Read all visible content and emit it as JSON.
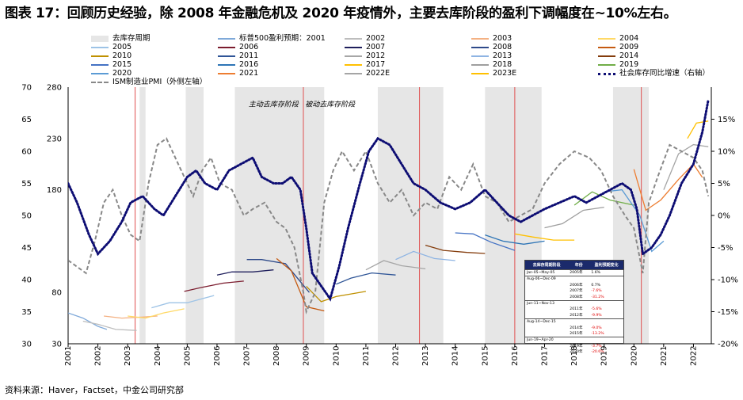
{
  "title": "图表 17：回顾历史经验，除 2008 年金融危机及 2020 年疫情外，主要去库阶段的盈利下调幅度在~10%左右。",
  "source": "资料来源：Haver，Factset，中金公司研究部",
  "legend": [
    {
      "label": "去库存周期",
      "color": "#e6e6e6",
      "style": "box"
    },
    {
      "label": "标普500盈利预期：2001",
      "color": "#7fa9d9",
      "style": "line"
    },
    {
      "label": "2002",
      "color": "#bdbdbd",
      "style": "line"
    },
    {
      "label": "2003",
      "color": "#f4b183",
      "style": "line"
    },
    {
      "label": "2004",
      "color": "#ffd966",
      "style": "line"
    },
    {
      "label": "2005",
      "color": "#9dc3e6",
      "style": "line"
    },
    {
      "label": "2006",
      "color": "#7b1c2e",
      "style": "line"
    },
    {
      "label": "2007",
      "color": "#1f1f5c",
      "style": "line"
    },
    {
      "label": "2008",
      "color": "#2e4a8a",
      "style": "line"
    },
    {
      "label": "2009",
      "color": "#c55a11",
      "style": "line"
    },
    {
      "label": "2010",
      "color": "#bf9000",
      "style": "line"
    },
    {
      "label": "2011",
      "color": "#2f5597",
      "style": "line"
    },
    {
      "label": "2012",
      "color": "#a6a6a6",
      "style": "line"
    },
    {
      "label": "2013",
      "color": "#8eb4e3",
      "style": "line"
    },
    {
      "label": "2014",
      "color": "#843c0c",
      "style": "line"
    },
    {
      "label": "2015",
      "color": "#4472c4",
      "style": "line"
    },
    {
      "label": "2016",
      "color": "#2e75b6",
      "style": "line"
    },
    {
      "label": "2017",
      "color": "#ffc000",
      "style": "line"
    },
    {
      "label": "2018",
      "color": "#9e9e9e",
      "style": "line"
    },
    {
      "label": "2019",
      "color": "#70ad47",
      "style": "line"
    },
    {
      "label": "2020",
      "color": "#5b9bd5",
      "style": "line"
    },
    {
      "label": "2021",
      "color": "#ed7d31",
      "style": "line"
    },
    {
      "label": "2022E",
      "color": "#a5a5a5",
      "style": "line"
    },
    {
      "label": "2023E",
      "color": "#ffc000",
      "style": "line"
    },
    {
      "label": "社会库存同比增速（右轴）",
      "color": "#0d0d73",
      "style": "dot"
    },
    {
      "label": "ISM制造业PMI（外侧左轴）",
      "color": "#888888",
      "style": "dash"
    }
  ],
  "chart_data": {
    "type": "line",
    "x_ticks": [
      "2001",
      "2002",
      "2003",
      "2004",
      "2005",
      "2006",
      "2007",
      "2008",
      "2009",
      "2010",
      "2011",
      "2012",
      "2013",
      "2014",
      "2015",
      "2016",
      "2017",
      "2018",
      "2019",
      "2020",
      "2021",
      "2022"
    ],
    "x_range": [
      2001,
      2022.6
    ],
    "y_outer_left": {
      "ticks": [
        30,
        35,
        40,
        45,
        50,
        55,
        60,
        65,
        70
      ],
      "range": [
        30,
        70
      ]
    },
    "y_inner_left": {
      "ticks": [
        30,
        80,
        130,
        180,
        230,
        280
      ],
      "range": [
        30,
        280
      ],
      "hidden_tick_labels": [
        "130"
      ]
    },
    "y_right": {
      "ticks": [
        "-20%",
        "-15%",
        "-10%",
        "-5%",
        "0%",
        "5%",
        "10%",
        "15%"
      ],
      "range": [
        -20,
        20
      ]
    },
    "destocking_periods": [
      [
        2003.4,
        2003.6
      ],
      [
        2004.95,
        2005.55
      ],
      [
        2006.6,
        2009.6
      ],
      [
        2011.4,
        2013.6
      ],
      [
        2015.0,
        2016.9
      ],
      [
        2019.3,
        2020.5
      ]
    ],
    "event_lines": [
      2003.25,
      2008.9,
      2012.8,
      2016.0,
      2020.25
    ],
    "annotations": [
      {
        "text": "主动去库存阶段",
        "x": 2007.9,
        "y_right": 17
      },
      {
        "text": "被动去库存阶段",
        "x": 2009.8,
        "y_right": 17
      }
    ],
    "inventory_yoy": {
      "name": "社会库存同比增速（右轴）",
      "x": [
        2001.0,
        2001.3,
        2001.7,
        2002.0,
        2002.4,
        2002.8,
        2003.1,
        2003.5,
        2003.9,
        2004.2,
        2004.6,
        2005.0,
        2005.3,
        2005.6,
        2006.0,
        2006.4,
        2006.8,
        2007.2,
        2007.5,
        2007.9,
        2008.2,
        2008.5,
        2008.8,
        2009.0,
        2009.2,
        2009.5,
        2009.8,
        2010.1,
        2010.4,
        2010.8,
        2011.1,
        2011.4,
        2011.8,
        2012.2,
        2012.6,
        2013.0,
        2013.5,
        2014.0,
        2014.5,
        2015.0,
        2015.4,
        2015.8,
        2016.2,
        2016.6,
        2017.0,
        2017.5,
        2018.0,
        2018.4,
        2018.8,
        2019.2,
        2019.6,
        2019.9,
        2020.1,
        2020.3,
        2020.6,
        2020.9,
        2021.2,
        2021.6,
        2022.0,
        2022.3,
        2022.5
      ],
      "values": [
        5,
        2,
        -3,
        -6,
        -4,
        -1,
        2,
        3,
        1,
        0,
        3,
        6,
        7,
        5,
        4,
        7,
        8,
        9,
        6,
        5,
        5,
        6,
        4,
        -2,
        -9,
        -11,
        -13,
        -8,
        -2,
        5,
        10,
        12,
        11,
        8,
        5,
        4,
        2,
        1,
        2,
        4,
        2,
        0,
        -1,
        0,
        1,
        2,
        3,
        2,
        3,
        4,
        5,
        4,
        1,
        -6,
        -5,
        -3,
        0,
        5,
        8,
        13,
        18
      ]
    },
    "pmi": {
      "name": "ISM制造业PMI（外侧左轴）",
      "x": [
        2001.0,
        2001.3,
        2001.6,
        2001.9,
        2002.2,
        2002.5,
        2002.8,
        2003.1,
        2003.4,
        2003.7,
        2004.0,
        2004.3,
        2004.6,
        2004.9,
        2005.2,
        2005.5,
        2005.8,
        2006.1,
        2006.5,
        2006.9,
        2007.2,
        2007.6,
        2008.0,
        2008.3,
        2008.6,
        2008.9,
        2009.0,
        2009.3,
        2009.6,
        2009.9,
        2010.2,
        2010.6,
        2011.0,
        2011.4,
        2011.8,
        2012.2,
        2012.6,
        2013.0,
        2013.4,
        2013.8,
        2014.2,
        2014.6,
        2015.0,
        2015.4,
        2015.8,
        2016.2,
        2016.6,
        2017.0,
        2017.5,
        2018.0,
        2018.5,
        2018.9,
        2019.3,
        2019.7,
        2020.0,
        2020.3,
        2020.5,
        2020.8,
        2021.2,
        2021.6,
        2022.0,
        2022.3,
        2022.5
      ],
      "values": [
        43,
        42,
        41,
        46,
        52,
        54,
        50,
        47,
        46,
        55,
        61,
        62,
        59,
        56,
        53,
        57,
        59,
        55,
        54,
        50,
        51,
        52,
        49,
        48,
        45,
        38,
        35,
        38,
        52,
        57,
        60,
        57,
        60,
        55,
        52,
        54,
        50,
        52,
        51,
        56,
        54,
        58,
        53,
        52,
        49,
        50,
        51,
        55,
        58,
        60,
        59,
        57,
        53,
        50,
        48,
        41,
        52,
        56,
        61,
        60,
        59,
        57,
        53
      ]
    },
    "eps_series": [
      {
        "name": "2001",
        "x": [
          2001.0,
          2001.5,
          2002.0,
          2002.3
        ],
        "values": [
          60,
          55,
          47,
          44
        ]
      },
      {
        "name": "2002",
        "x": [
          2001.5,
          2002.0,
          2002.6,
          2003.3
        ],
        "values": [
          52,
          49,
          44,
          43
        ]
      },
      {
        "name": "2003",
        "x": [
          2002.2,
          2002.8,
          2003.5,
          2004.0
        ],
        "values": [
          57,
          55,
          56,
          57
        ]
      },
      {
        "name": "2004",
        "x": [
          2003.0,
          2003.6,
          2004.2,
          2004.9
        ],
        "values": [
          57,
          55,
          60,
          64
        ]
      },
      {
        "name": "2005",
        "x": [
          2003.8,
          2004.4,
          2005.0,
          2005.9
        ],
        "values": [
          65,
          70,
          70,
          77
        ]
      },
      {
        "name": "2006",
        "x": [
          2004.9,
          2005.5,
          2006.2,
          2006.9
        ],
        "values": [
          81,
          85,
          89,
          91
        ]
      },
      {
        "name": "2007",
        "x": [
          2006.0,
          2006.5,
          2007.2,
          2007.9
        ],
        "values": [
          97,
          100,
          100,
          102
        ]
      },
      {
        "name": "2008",
        "x": [
          2007.0,
          2007.5,
          2008.3,
          2009.1
        ],
        "values": [
          112,
          112,
          108,
          80
        ]
      },
      {
        "name": "2009",
        "x": [
          2008.0,
          2008.5,
          2009.0,
          2009.6
        ],
        "values": [
          113,
          101,
          66,
          62
        ]
      },
      {
        "name": "2010",
        "x": [
          2009.0,
          2009.5,
          2010.0,
          2011.0
        ],
        "values": [
          86,
          71,
          76,
          81
        ]
      },
      {
        "name": "2011",
        "x": [
          2010.0,
          2010.5,
          2011.2,
          2012.0
        ],
        "values": [
          88,
          94,
          99,
          97
        ]
      },
      {
        "name": "2012",
        "x": [
          2011.0,
          2011.6,
          2012.2,
          2013.0
        ],
        "values": [
          102,
          111,
          106,
          103
        ]
      },
      {
        "name": "2013",
        "x": [
          2012.0,
          2012.6,
          2013.3,
          2014.0
        ],
        "values": [
          112,
          120,
          113,
          111
        ]
      },
      {
        "name": "2014",
        "x": [
          2013.0,
          2013.6,
          2014.4,
          2015.0
        ],
        "values": [
          126,
          121,
          119,
          118
        ]
      },
      {
        "name": "2015",
        "x": [
          2014.0,
          2014.6,
          2015.2,
          2016.0
        ],
        "values": [
          138,
          137,
          129,
          121
        ]
      },
      {
        "name": "2016",
        "x": [
          2015.0,
          2015.6,
          2016.3,
          2017.0
        ],
        "values": [
          136,
          130,
          127,
          130
        ]
      },
      {
        "name": "2017",
        "x": [
          2016.0,
          2016.6,
          2017.3,
          2018.0
        ],
        "values": [
          137,
          134,
          131,
          131
        ]
      },
      {
        "name": "2018",
        "x": [
          2017.0,
          2017.6,
          2018.3,
          2019.0
        ],
        "values": [
          143,
          147,
          160,
          163
        ]
      },
      {
        "name": "2019",
        "x": [
          2018.0,
          2018.6,
          2019.2,
          2020.0
        ],
        "values": [
          165,
          178,
          170,
          165
        ]
      },
      {
        "name": "2020",
        "x": [
          2019.0,
          2019.6,
          2020.2,
          2020.6,
          2021.0
        ],
        "values": [
          178,
          180,
          155,
          120,
          130
        ]
      },
      {
        "name": "2021",
        "x": [
          2020.0,
          2020.4,
          2020.9,
          2021.5,
          2022.0,
          2022.3
        ],
        "values": [
          200,
          160,
          170,
          190,
          205,
          192
        ]
      },
      {
        "name": "2022E",
        "x": [
          2021.0,
          2021.5,
          2022.0,
          2022.5
        ],
        "values": [
          180,
          215,
          224,
          222
        ]
      },
      {
        "name": "2023E",
        "x": [
          2021.8,
          2022.1,
          2022.5
        ],
        "values": [
          230,
          245,
          247
        ]
      }
    ],
    "inset_table": {
      "headers": [
        "去库存周期阶段",
        "年份",
        "盈利预期变化"
      ],
      "rows": [
        {
          "period": "Jan-05~May-05",
          "year": "2005年",
          "change": "1.6%",
          "neg": false,
          "sep": true
        },
        {
          "period": "Aug-06~Dec-09",
          "year": "",
          "change": "",
          "neg": false,
          "sep": true
        },
        {
          "period": "",
          "year": "2006年",
          "change": "0.7%",
          "neg": false,
          "sep": false
        },
        {
          "period": "",
          "year": "2007年",
          "change": "-7.6%",
          "neg": true,
          "sep": false
        },
        {
          "period": "",
          "year": "2008年",
          "change": "-31.2%",
          "neg": true,
          "sep": false
        },
        {
          "period": "Jun-11~Nov-13",
          "year": "",
          "change": "",
          "neg": false,
          "sep": true
        },
        {
          "period": "",
          "year": "2011年",
          "change": "-5.6%",
          "neg": true,
          "sep": false
        },
        {
          "period": "",
          "year": "2012年",
          "change": "-9.9%",
          "neg": true,
          "sep": false
        },
        {
          "period": "Aug-14~Dec-15",
          "year": "",
          "change": "",
          "neg": false,
          "sep": true
        },
        {
          "period": "",
          "year": "2014年",
          "change": "-9.0%",
          "neg": true,
          "sep": false
        },
        {
          "period": "",
          "year": "2015年",
          "change": "-13.2%",
          "neg": true,
          "sep": false
        },
        {
          "period": "Jun-19~Apr-20",
          "year": "",
          "change": "",
          "neg": false,
          "sep": true
        },
        {
          "period": "",
          "year": "2019年",
          "change": "-3.7%",
          "neg": true,
          "sep": false
        },
        {
          "period": "",
          "year": "2020年",
          "change": "-20.6%",
          "neg": true,
          "sep": false
        }
      ]
    }
  }
}
